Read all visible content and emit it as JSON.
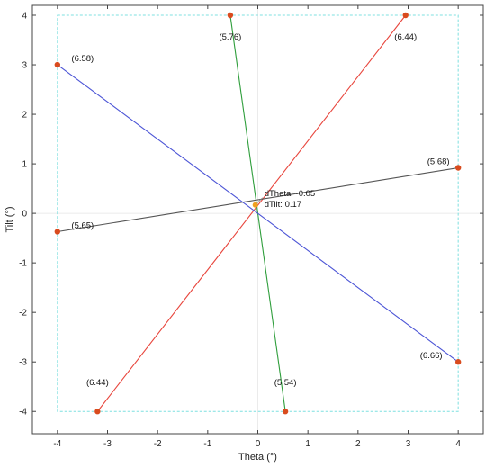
{
  "chart_data": {
    "type": "scatter",
    "xlabel": "Theta (°)",
    "ylabel": "Tilt (°)",
    "xlim": [
      -4.5,
      4.5
    ],
    "ylim": [
      -4.45,
      4.2
    ],
    "x_ticks": [
      -4,
      -3,
      -2,
      -1,
      0,
      1,
      2,
      3,
      4
    ],
    "y_ticks": [
      -4,
      -3,
      -2,
      -1,
      0,
      1,
      2,
      3,
      4
    ],
    "grid": false,
    "boundary_box": {
      "x": [
        -4,
        4
      ],
      "y": [
        -4,
        4
      ],
      "color": "#7fe0e0"
    },
    "lines": [
      {
        "color": "#2f9e3c",
        "start": {
          "x": -0.55,
          "y": 4,
          "label": "(5.76)"
        },
        "end": {
          "x": 0.55,
          "y": -4,
          "label": "(5.54)"
        }
      },
      {
        "color": "#e8453c",
        "start": {
          "x": 2.95,
          "y": 4,
          "label": "(6.44)"
        },
        "end": {
          "x": -3.2,
          "y": -4,
          "label": "(6.44)"
        }
      },
      {
        "color": "#4c55d6",
        "start": {
          "x": -4,
          "y": 3,
          "label": "(6.58)"
        },
        "end": {
          "x": 4,
          "y": -3,
          "label": "(6.66)"
        }
      },
      {
        "color": "#555555",
        "start": {
          "x": -4,
          "y": -0.37,
          "label": "(5.65)"
        },
        "end": {
          "x": 4,
          "y": 0.92,
          "label": "(5.68)"
        }
      }
    ],
    "endpoint_color": "#d94b1e",
    "center_point": {
      "x": -0.05,
      "y": 0.17,
      "color": "#f0a020"
    },
    "annotation": {
      "line1": "dTheta: -0.05",
      "line2": "dTilt: 0.17"
    }
  }
}
